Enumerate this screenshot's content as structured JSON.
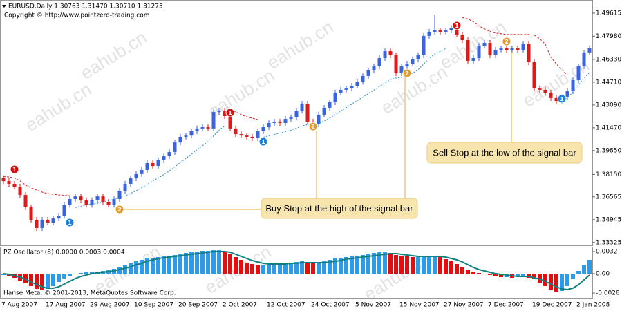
{
  "watermark": "eahub.cn",
  "footer": "Hanse Meta, © 2001-2013, MetaQuotes Software Corp.",
  "chart_data": [
    {
      "type": "candlestick",
      "title": "EURUSD,Daily  1.30763 1.31470 1.30710 1.31275",
      "subtitle": "Copyright © http://www.pointzero-trading.com",
      "categories": [
        "7 Aug 2007",
        null,
        null,
        null,
        null,
        null,
        null,
        null,
        "17 Aug 2007",
        null,
        null,
        null,
        null,
        null,
        null,
        null,
        "29 Aug 2007",
        null,
        null,
        null,
        null,
        null,
        null,
        null,
        "10 Sep 2007",
        null,
        null,
        null,
        null,
        null,
        null,
        null,
        "20 Sep 2007",
        null,
        null,
        null,
        null,
        null,
        null,
        null,
        "2 Oct 2007",
        null,
        null,
        null,
        null,
        null,
        null,
        null,
        "12 Oct 2007",
        null,
        null,
        null,
        null,
        null,
        null,
        null,
        "24 Oct 2007",
        null,
        null,
        null,
        null,
        null,
        null,
        null,
        "5 Nov 2007",
        null,
        null,
        null,
        null,
        null,
        null,
        null,
        "15 Nov 2007",
        null,
        null,
        null,
        null,
        null,
        null,
        null,
        "27 Nov 2007",
        null,
        null,
        null,
        null,
        null,
        null,
        null,
        "7 Dec 2007",
        null,
        null,
        null,
        null,
        null,
        null,
        null,
        "19 Dec 2007",
        null,
        null,
        null,
        null,
        null,
        null,
        null,
        "2 Jan 2008",
        null,
        null
      ],
      "open": [
        1.379,
        1.3768,
        1.3749,
        1.3729,
        1.367,
        1.3582,
        1.3493,
        1.3435,
        1.3493,
        1.3474,
        1.3503,
        1.3523,
        1.3601,
        1.3641,
        1.366,
        1.3631,
        1.3601,
        1.3631,
        1.366,
        1.3621,
        1.3601,
        1.3641,
        1.37,
        1.3749,
        1.3788,
        1.3818,
        1.3847,
        1.3896,
        1.3876,
        1.3916,
        1.3945,
        1.3975,
        1.4043,
        1.4083,
        1.4092,
        1.4122,
        1.4142,
        1.4151,
        1.4142,
        1.4259,
        1.4269,
        1.423,
        1.4142,
        1.4102,
        1.4092,
        1.4083,
        1.4073,
        1.4122,
        1.4151,
        1.4181,
        1.4191,
        1.4181,
        1.421,
        1.422,
        1.4269,
        1.4318,
        1.4191,
        1.4171,
        1.424,
        1.4289,
        1.4328,
        1.4397,
        1.4417,
        1.4426,
        1.4446,
        1.4475,
        1.4515,
        1.4554,
        1.4583,
        1.4642,
        1.4691,
        1.4662,
        1.4534,
        1.4583,
        1.4603,
        1.4633,
        1.4662,
        1.48,
        1.4829,
        1.4839,
        1.4829,
        1.4839,
        1.4858,
        1.4809,
        1.477,
        1.4623,
        1.4642,
        1.4731,
        1.475,
        1.4662,
        1.4701,
        1.4711,
        1.4701,
        1.4711,
        1.4701,
        1.4741,
        1.4613,
        1.4426,
        1.4417,
        1.4397,
        1.4358,
        1.4338,
        1.4367,
        1.4407,
        1.4485,
        1.4583,
        1.4682
      ],
      "high": [
        1.381,
        1.3788,
        1.3769,
        1.3749,
        1.369,
        1.3602,
        1.3513,
        1.3513,
        1.3513,
        1.3523,
        1.3543,
        1.3621,
        1.3661,
        1.368,
        1.368,
        1.3651,
        1.3651,
        1.368,
        1.368,
        1.3641,
        1.3661,
        1.372,
        1.3769,
        1.3808,
        1.3838,
        1.3867,
        1.3916,
        1.3916,
        1.3936,
        1.3965,
        1.3995,
        1.4063,
        1.4103,
        1.4112,
        1.4142,
        1.4162,
        1.4171,
        1.4171,
        1.4279,
        1.4289,
        1.4289,
        1.425,
        1.4162,
        1.4122,
        1.4112,
        1.4103,
        1.4142,
        1.4171,
        1.4201,
        1.4211,
        1.4211,
        1.423,
        1.424,
        1.4289,
        1.4338,
        1.4338,
        1.4211,
        1.426,
        1.4309,
        1.4348,
        1.4417,
        1.4437,
        1.4446,
        1.4466,
        1.4495,
        1.4535,
        1.4574,
        1.4603,
        1.4662,
        1.4711,
        1.4711,
        1.4682,
        1.4603,
        1.4623,
        1.4653,
        1.4682,
        1.482,
        1.4849,
        1.495,
        1.4859,
        1.4859,
        1.4878,
        1.4878,
        1.4829,
        1.479,
        1.4662,
        1.4751,
        1.477,
        1.477,
        1.4721,
        1.4731,
        1.4731,
        1.4731,
        1.4731,
        1.4761,
        1.4761,
        1.4633,
        1.4446,
        1.4437,
        1.4417,
        1.4378,
        1.4387,
        1.4427,
        1.4505,
        1.4603,
        1.4702,
        1.4731
      ],
      "low": [
        1.3748,
        1.3729,
        1.3709,
        1.365,
        1.3562,
        1.3473,
        1.3415,
        1.3415,
        1.3454,
        1.3454,
        1.3483,
        1.3503,
        1.3581,
        1.3621,
        1.3611,
        1.3581,
        1.3581,
        1.3611,
        1.3601,
        1.3581,
        1.3581,
        1.3621,
        1.368,
        1.3729,
        1.3768,
        1.3798,
        1.3827,
        1.3856,
        1.3856,
        1.3896,
        1.3925,
        1.3955,
        1.4023,
        1.4063,
        1.4072,
        1.4102,
        1.4122,
        1.4122,
        1.4122,
        1.4239,
        1.421,
        1.4122,
        1.4082,
        1.4072,
        1.4063,
        1.4053,
        1.4053,
        1.4102,
        1.4131,
        1.4161,
        1.4161,
        1.4161,
        1.419,
        1.42,
        1.4249,
        1.4171,
        1.4151,
        1.4151,
        1.422,
        1.4269,
        1.4308,
        1.4377,
        1.4397,
        1.4406,
        1.4426,
        1.4455,
        1.4495,
        1.4534,
        1.4563,
        1.4622,
        1.4642,
        1.4514,
        1.4514,
        1.4563,
        1.4583,
        1.4613,
        1.4642,
        1.478,
        1.4809,
        1.4809,
        1.4809,
        1.4819,
        1.4789,
        1.475,
        1.4603,
        1.4603,
        1.4622,
        1.4711,
        1.4642,
        1.4642,
        1.4681,
        1.4681,
        1.4681,
        1.4681,
        1.4681,
        1.4593,
        1.4406,
        1.4397,
        1.4377,
        1.4338,
        1.4318,
        1.4318,
        1.4347,
        1.4387,
        1.4465,
        1.4563,
        1.4662
      ],
      "close": [
        1.3768,
        1.3749,
        1.3729,
        1.367,
        1.3582,
        1.3493,
        1.3435,
        1.3493,
        1.3474,
        1.3503,
        1.3523,
        1.3601,
        1.3641,
        1.366,
        1.3631,
        1.3601,
        1.3631,
        1.366,
        1.3621,
        1.3601,
        1.3641,
        1.37,
        1.3749,
        1.3788,
        1.3818,
        1.3847,
        1.3896,
        1.3876,
        1.3916,
        1.3945,
        1.3975,
        1.4043,
        1.4083,
        1.4092,
        1.4122,
        1.4142,
        1.4151,
        1.4142,
        1.4259,
        1.4269,
        1.423,
        1.4142,
        1.4102,
        1.4092,
        1.4083,
        1.4073,
        1.4122,
        1.4151,
        1.4181,
        1.4191,
        1.4181,
        1.421,
        1.422,
        1.4269,
        1.4318,
        1.4191,
        1.4171,
        1.424,
        1.4289,
        1.4328,
        1.4397,
        1.4417,
        1.4426,
        1.4446,
        1.4475,
        1.4515,
        1.4554,
        1.4583,
        1.4642,
        1.4691,
        1.4662,
        1.4534,
        1.4583,
        1.4603,
        1.4633,
        1.4662,
        1.48,
        1.4829,
        1.4839,
        1.4829,
        1.4839,
        1.4858,
        1.4809,
        1.477,
        1.4623,
        1.4642,
        1.4731,
        1.475,
        1.4662,
        1.4701,
        1.4711,
        1.4701,
        1.4711,
        1.4701,
        1.4741,
        1.4613,
        1.4426,
        1.4417,
        1.4397,
        1.4358,
        1.4338,
        1.4367,
        1.4407,
        1.4485,
        1.4583,
        1.4682,
        1.4711
      ],
      "up_color": "#3a63e0",
      "down_color": "#e01818",
      "stop_long": {
        "color": "#1e8fe0",
        "values": [
          null,
          null,
          null,
          null,
          null,
          null,
          null,
          null,
          null,
          null,
          null,
          null,
          null,
          1.358,
          1.359,
          1.36,
          1.3605,
          1.361,
          1.362,
          1.363,
          1.364,
          1.365,
          1.3665,
          1.368,
          1.37,
          1.372,
          1.3745,
          1.377,
          1.379,
          1.3815,
          1.384,
          1.387,
          1.39,
          1.393,
          1.396,
          1.399,
          1.402,
          1.405,
          1.409,
          1.413,
          1.416,
          null,
          null,
          null,
          null,
          null,
          null,
          1.408,
          1.409,
          1.41,
          1.411,
          1.412,
          1.413,
          1.4145,
          1.416,
          1.417,
          1.4175,
          1.418,
          1.4195,
          1.4215,
          1.424,
          1.4265,
          1.429,
          1.4315,
          1.434,
          1.4365,
          1.439,
          1.4415,
          1.444,
          1.4465,
          1.449,
          1.45,
          1.4505,
          1.4515,
          1.4535,
          1.456,
          1.46,
          1.464,
          1.467,
          1.469,
          1.471,
          null,
          null,
          null,
          null,
          null,
          null,
          null,
          null,
          null,
          null,
          null,
          null,
          null,
          null,
          null,
          null,
          null,
          null,
          null,
          null,
          1.433,
          1.436,
          1.44,
          1.445,
          1.45,
          1.454
        ]
      },
      "stop_short": {
        "color": "#e01818",
        "values": [
          1.38,
          1.3798,
          1.379,
          1.377,
          1.374,
          1.372,
          1.3705,
          1.369,
          1.368,
          1.3675,
          1.367,
          1.3668,
          1.3665,
          null,
          null,
          null,
          null,
          null,
          null,
          null,
          null,
          null,
          null,
          null,
          null,
          null,
          null,
          null,
          null,
          null,
          null,
          null,
          null,
          null,
          null,
          null,
          null,
          null,
          null,
          null,
          null,
          1.427,
          1.426,
          1.424,
          1.4225,
          1.4215,
          1.4205,
          null,
          null,
          null,
          null,
          null,
          null,
          null,
          null,
          null,
          null,
          null,
          null,
          null,
          null,
          null,
          null,
          null,
          null,
          null,
          null,
          null,
          null,
          null,
          null,
          null,
          null,
          null,
          null,
          null,
          null,
          null,
          null,
          null,
          null,
          null,
          null,
          1.493,
          1.492,
          1.49,
          1.487,
          1.485,
          1.483,
          1.482,
          1.4815,
          1.481,
          1.481,
          1.481,
          1.481,
          1.481,
          1.4805,
          1.478,
          1.474,
          1.465,
          1.46,
          1.456,
          1.452,
          null,
          null,
          null,
          null,
          null,
          null
        ]
      },
      "signals": [
        {
          "index": 2,
          "price": 1.3852,
          "label": "1",
          "color": "#d51010"
        },
        {
          "index": 12,
          "price": 1.3474,
          "label": "1",
          "color": "#1e7fd8"
        },
        {
          "index": 21,
          "price": 1.3567,
          "label": "2",
          "color": "#e89a2c"
        },
        {
          "index": 41,
          "price": 1.4254,
          "label": "1",
          "color": "#d51010"
        },
        {
          "index": 47,
          "price": 1.4048,
          "label": "1",
          "color": "#1e7fd8"
        },
        {
          "index": 56,
          "price": 1.4156,
          "label": "2",
          "color": "#e89a2c"
        },
        {
          "index": 73,
          "price": 1.4534,
          "label": "2",
          "color": "#e89a2c"
        },
        {
          "index": 82,
          "price": 1.4873,
          "label": "1",
          "color": "#d51010"
        },
        {
          "index": 91,
          "price": 1.476,
          "label": "2",
          "color": "#e89a2c"
        },
        {
          "index": 101,
          "price": 1.4353,
          "label": "1",
          "color": "#1e7fd8"
        }
      ],
      "annotations": [
        "Buy Stop at the high of the signal bar",
        "Sell Stop at the low of the signal bar"
      ],
      "ylim": [
        1.3312,
        1.503
      ],
      "yticks": [
        1.33325,
        1.34945,
        1.36565,
        {
          "value": 1.3815,
          "label": "1.38150"
        },
        {
          "value": 1.3985,
          "label": "1.39850"
        },
        {
          "value": 1.4147,
          "label": "1.41470"
        },
        {
          "value": 1.4309,
          "label": "1.43090"
        },
        {
          "value": 1.4471,
          "label": "1.44710"
        },
        {
          "value": 1.4633,
          "label": "1.46330"
        },
        {
          "value": 1.4798,
          "label": "1.47980"
        },
        1.49615
      ]
    },
    {
      "type": "oscillator",
      "title": "PZ Oscillator (8) 0.0000 0.0003 0.0004",
      "values": [
        -0.0002,
        -0.0004,
        -0.0006,
        -0.001,
        -0.0014,
        -0.0018,
        -0.0022,
        -0.0024,
        -0.0022,
        -0.0018,
        -0.0012,
        -0.0007,
        -0.0003,
        0,
        0.0001,
        0.0002,
        0.0002,
        0.0003,
        0.0004,
        0.0005,
        0.0007,
        0.0009,
        0.0012,
        0.0015,
        0.0018,
        0.002,
        0.0022,
        0.0023,
        0.0024,
        0.0025,
        0.0026,
        0.0027,
        0.0029,
        0.003,
        0.0031,
        0.0032,
        0.0033,
        0.0033,
        0.0034,
        0.0034,
        0.0032,
        0.0028,
        0.0024,
        0.002,
        0.0016,
        0.0014,
        0.0013,
        0.0013,
        0.0014,
        0.0014,
        0.0015,
        0.0015,
        0.0016,
        0.0017,
        0.0018,
        0.0016,
        0.0015,
        0.0016,
        0.0018,
        0.002,
        0.0022,
        0.0023,
        0.0024,
        0.0025,
        0.0026,
        0.0027,
        0.0029,
        0.003,
        0.0031,
        0.0031,
        0.003,
        0.0027,
        0.0026,
        0.0025,
        0.0024,
        0.0024,
        0.0025,
        0.0026,
        0.0026,
        0.0024,
        0.0021,
        0.0018,
        0.0014,
        0.001,
        0.0005,
        0.0002,
        0.0001,
        0,
        -0.0002,
        -0.0004,
        -0.0005,
        -0.0005,
        -0.0006,
        -0.0004,
        -0.0003,
        -0.0006,
        -0.0008,
        -0.0013,
        -0.0018,
        -0.0023,
        -0.0026,
        -0.0025,
        -0.0018,
        -0.0008,
        0.0004,
        0.0012,
        0.002
      ],
      "line_values": [
        0,
        -0.0001,
        -0.0003,
        -0.0005,
        -0.0008,
        -0.0012,
        -0.0016,
        -0.0019,
        -0.0021,
        -0.0021,
        -0.0019,
        -0.0015,
        -0.0011,
        -0.0007,
        -0.0004,
        -0.0002,
        0,
        0.0001,
        0.0002,
        0.0003,
        0.0004,
        0.0006,
        0.0008,
        0.001,
        0.0013,
        0.0015,
        0.0018,
        0.002,
        0.0022,
        0.0023,
        0.0024,
        0.0025,
        0.0026,
        0.0027,
        0.0028,
        0.0029,
        0.003,
        0.0031,
        0.0032,
        0.0032,
        0.0032,
        0.0031,
        0.0028,
        0.0025,
        0.0022,
        0.0019,
        0.0017,
        0.0015,
        0.0014,
        0.0014,
        0.0014,
        0.0014,
        0.0015,
        0.0015,
        0.0016,
        0.0016,
        0.0016,
        0.0016,
        0.0016,
        0.0017,
        0.0018,
        0.0019,
        0.0021,
        0.0022,
        0.0023,
        0.0024,
        0.0025,
        0.0026,
        0.0027,
        0.0028,
        0.0029,
        0.0029,
        0.0028,
        0.0027,
        0.0026,
        0.0025,
        0.0025,
        0.0025,
        0.0025,
        0.0025,
        0.0024,
        0.0022,
        0.002,
        0.0017,
        0.0013,
        0.0009,
        0.0006,
        0.0004,
        0.0002,
        0,
        -0.0001,
        -0.0002,
        -0.0003,
        -0.0004,
        -0.0004,
        -0.0004,
        -0.0006,
        -0.0008,
        -0.0011,
        -0.0015,
        -0.0019,
        -0.0022,
        -0.0023,
        -0.0021,
        -0.0016,
        -0.0009,
        -0.0002
      ],
      "up_color": "#2d9be8",
      "down_color": "#e01010",
      "line_color": "#138080",
      "ylim": [
        -0.0036,
        0.0038
      ],
      "yticks": [
        -0.0028,
        {
          "value": 0,
          "label": "0.00"
        },
        0.0032
      ]
    }
  ]
}
